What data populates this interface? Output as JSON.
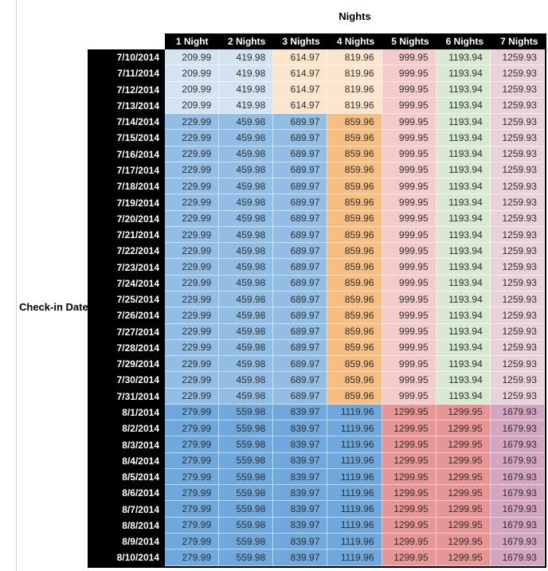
{
  "chart_data": {
    "type": "table",
    "title": "Nights",
    "row_axis_label": "Check-in Date",
    "columns": [
      "1 Night",
      "2 Nights",
      "3 Nights",
      "4 Nights",
      "5 Nights",
      "6 Nights",
      "7 Nights"
    ],
    "palette": {
      "light_blue": "#d3e3f1",
      "mid_blue": "#92bee6",
      "dark_blue": "#6fa8dc",
      "cream": "#fce5cd",
      "orange": "#f6be82",
      "light_pink": "#f3cbcb",
      "light_green": "#d9ead3",
      "light_purple": "#ead2dc",
      "red": "#e89595",
      "mauve": "#d3a5c0",
      "header_bg": "#000000",
      "header_text": "#ffffff",
      "cell_text": "#2e2e2e"
    },
    "bands": {
      "A": [
        "light_blue",
        "light_blue",
        "cream",
        "cream",
        "light_pink",
        "light_green",
        "light_purple"
      ],
      "B": [
        "mid_blue",
        "mid_blue",
        "mid_blue",
        "orange",
        "light_pink",
        "light_green",
        "light_purple"
      ],
      "C": [
        "dark_blue",
        "dark_blue",
        "dark_blue",
        "dark_blue",
        "red",
        "red",
        "mauve"
      ]
    },
    "rows": [
      {
        "date": "7/10/2014",
        "band": "A",
        "values": [
          209.99,
          419.98,
          614.97,
          819.96,
          999.95,
          1193.94,
          1259.93
        ]
      },
      {
        "date": "7/11/2014",
        "band": "A",
        "values": [
          209.99,
          419.98,
          614.97,
          819.96,
          999.95,
          1193.94,
          1259.93
        ]
      },
      {
        "date": "7/12/2014",
        "band": "A",
        "values": [
          209.99,
          419.98,
          614.97,
          819.96,
          999.95,
          1193.94,
          1259.93
        ]
      },
      {
        "date": "7/13/2014",
        "band": "A",
        "values": [
          209.99,
          419.98,
          614.97,
          819.96,
          999.95,
          1193.94,
          1259.93
        ]
      },
      {
        "date": "7/14/2014",
        "band": "B",
        "values": [
          229.99,
          459.98,
          689.97,
          859.96,
          999.95,
          1193.94,
          1259.93
        ]
      },
      {
        "date": "7/15/2014",
        "band": "B",
        "values": [
          229.99,
          459.98,
          689.97,
          859.96,
          999.95,
          1193.94,
          1259.93
        ]
      },
      {
        "date": "7/16/2014",
        "band": "B",
        "values": [
          229.99,
          459.98,
          689.97,
          859.96,
          999.95,
          1193.94,
          1259.93
        ]
      },
      {
        "date": "7/17/2014",
        "band": "B",
        "values": [
          229.99,
          459.98,
          689.97,
          859.96,
          999.95,
          1193.94,
          1259.93
        ]
      },
      {
        "date": "7/18/2014",
        "band": "B",
        "values": [
          229.99,
          459.98,
          689.97,
          859.96,
          999.95,
          1193.94,
          1259.93
        ]
      },
      {
        "date": "7/19/2014",
        "band": "B",
        "values": [
          229.99,
          459.98,
          689.97,
          859.96,
          999.95,
          1193.94,
          1259.93
        ]
      },
      {
        "date": "7/20/2014",
        "band": "B",
        "values": [
          229.99,
          459.98,
          689.97,
          859.96,
          999.95,
          1193.94,
          1259.93
        ]
      },
      {
        "date": "7/21/2014",
        "band": "B",
        "values": [
          229.99,
          459.98,
          689.97,
          859.96,
          999.95,
          1193.94,
          1259.93
        ]
      },
      {
        "date": "7/22/2014",
        "band": "B",
        "values": [
          229.99,
          459.98,
          689.97,
          859.96,
          999.95,
          1193.94,
          1259.93
        ]
      },
      {
        "date": "7/23/2014",
        "band": "B",
        "values": [
          229.99,
          459.98,
          689.97,
          859.96,
          999.95,
          1193.94,
          1259.93
        ]
      },
      {
        "date": "7/24/2014",
        "band": "B",
        "values": [
          229.99,
          459.98,
          689.97,
          859.96,
          999.95,
          1193.94,
          1259.93
        ]
      },
      {
        "date": "7/25/2014",
        "band": "B",
        "values": [
          229.99,
          459.98,
          689.97,
          859.96,
          999.95,
          1193.94,
          1259.93
        ]
      },
      {
        "date": "7/26/2014",
        "band": "B",
        "values": [
          229.99,
          459.98,
          689.97,
          859.96,
          999.95,
          1193.94,
          1259.93
        ]
      },
      {
        "date": "7/27/2014",
        "band": "B",
        "values": [
          229.99,
          459.98,
          689.97,
          859.96,
          999.95,
          1193.94,
          1259.93
        ]
      },
      {
        "date": "7/28/2014",
        "band": "B",
        "values": [
          229.99,
          459.98,
          689.97,
          859.96,
          999.95,
          1193.94,
          1259.93
        ]
      },
      {
        "date": "7/29/2014",
        "band": "B",
        "values": [
          229.99,
          459.98,
          689.97,
          859.96,
          999.95,
          1193.94,
          1259.93
        ]
      },
      {
        "date": "7/30/2014",
        "band": "B",
        "values": [
          229.99,
          459.98,
          689.97,
          859.96,
          999.95,
          1193.94,
          1259.93
        ]
      },
      {
        "date": "7/31/2014",
        "band": "B",
        "values": [
          229.99,
          459.98,
          689.97,
          859.96,
          999.95,
          1193.94,
          1259.93
        ]
      },
      {
        "date": "8/1/2014",
        "band": "C",
        "values": [
          279.99,
          559.98,
          839.97,
          1119.96,
          1299.95,
          1299.95,
          1679.93
        ]
      },
      {
        "date": "8/2/2014",
        "band": "C",
        "values": [
          279.99,
          559.98,
          839.97,
          1119.96,
          1299.95,
          1299.95,
          1679.93
        ]
      },
      {
        "date": "8/3/2014",
        "band": "C",
        "values": [
          279.99,
          559.98,
          839.97,
          1119.96,
          1299.95,
          1299.95,
          1679.93
        ]
      },
      {
        "date": "8/4/2014",
        "band": "C",
        "values": [
          279.99,
          559.98,
          839.97,
          1119.96,
          1299.95,
          1299.95,
          1679.93
        ]
      },
      {
        "date": "8/5/2014",
        "band": "C",
        "values": [
          279.99,
          559.98,
          839.97,
          1119.96,
          1299.95,
          1299.95,
          1679.93
        ]
      },
      {
        "date": "8/6/2014",
        "band": "C",
        "values": [
          279.99,
          559.98,
          839.97,
          1119.96,
          1299.95,
          1299.95,
          1679.93
        ]
      },
      {
        "date": "8/7/2014",
        "band": "C",
        "values": [
          279.99,
          559.98,
          839.97,
          1119.96,
          1299.95,
          1299.95,
          1679.93
        ]
      },
      {
        "date": "8/8/2014",
        "band": "C",
        "values": [
          279.99,
          559.98,
          839.97,
          1119.96,
          1299.95,
          1299.95,
          1679.93
        ]
      },
      {
        "date": "8/9/2014",
        "band": "C",
        "values": [
          279.99,
          559.98,
          839.97,
          1119.96,
          1299.95,
          1299.95,
          1679.93
        ]
      },
      {
        "date": "8/10/2014",
        "band": "C",
        "values": [
          279.99,
          559.98,
          839.97,
          1119.96,
          1299.95,
          1299.95,
          1679.93
        ]
      }
    ]
  }
}
